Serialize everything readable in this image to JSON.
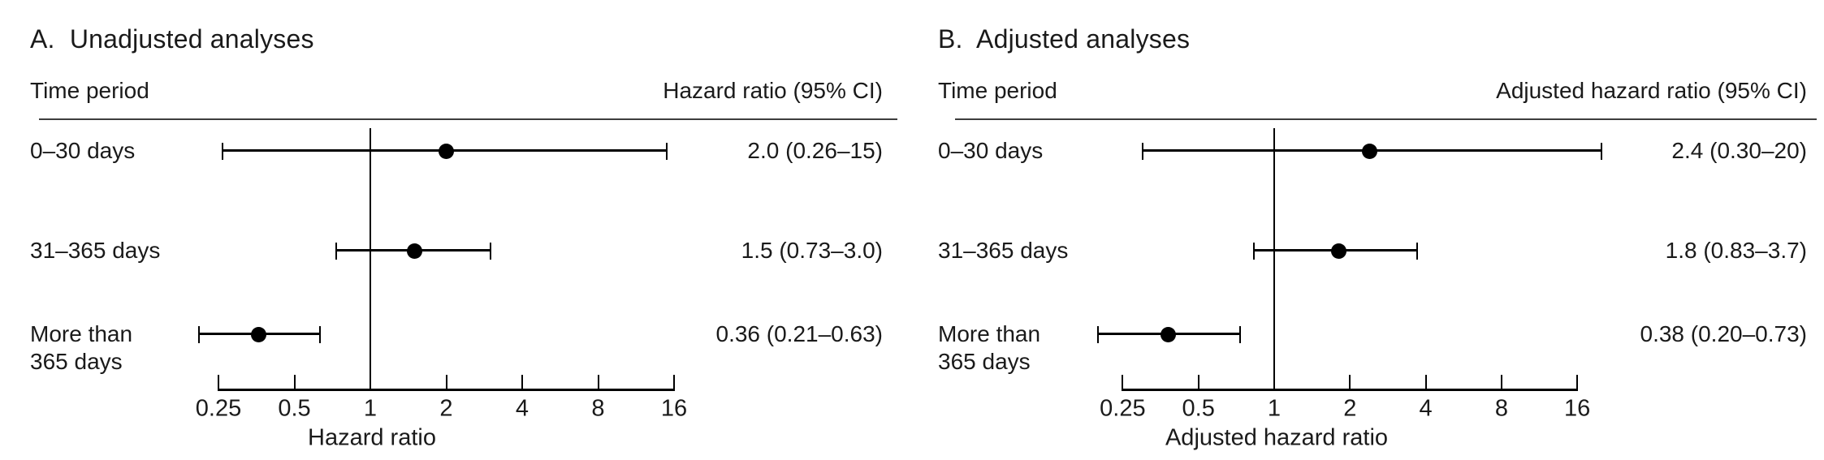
{
  "chart_data": [
    {
      "type": "forest",
      "panel": "A",
      "title": "A.  Unadjusted analyses",
      "left_header": "Time period",
      "right_header": "Hazard ratio (95% CI)",
      "xlabel": "Hazard ratio",
      "xscale": "log2",
      "xlim": [
        0.25,
        16
      ],
      "xticks": [
        0.25,
        0.5,
        1,
        2,
        4,
        8,
        16
      ],
      "xtick_labels": [
        "0.25",
        "0.5",
        "1",
        "2",
        "4",
        "8",
        "16"
      ],
      "ref_line": 1,
      "rows": [
        {
          "label_lines": [
            "0–30 days"
          ],
          "hr": 2.0,
          "ci_low": 0.26,
          "ci_high": 15,
          "display": "2.0 (0.26–15)"
        },
        {
          "label_lines": [
            "31–365 days"
          ],
          "hr": 1.5,
          "ci_low": 0.73,
          "ci_high": 3.0,
          "display": "1.5 (0.73–3.0)"
        },
        {
          "label_lines": [
            "More than",
            "365 days"
          ],
          "hr": 0.36,
          "ci_low": 0.21,
          "ci_high": 0.63,
          "display": "0.36 (0.21–0.63)"
        }
      ]
    },
    {
      "type": "forest",
      "panel": "B",
      "title": "B.  Adjusted analyses",
      "left_header": "Time period",
      "right_header": "Adjusted hazard ratio (95% CI)",
      "xlabel": "Adjusted hazard ratio",
      "xscale": "log2",
      "xlim": [
        0.25,
        16
      ],
      "xticks": [
        0.25,
        0.5,
        1,
        2,
        4,
        8,
        16
      ],
      "xtick_labels": [
        "0.25",
        "0.5",
        "1",
        "2",
        "4",
        "8",
        "16"
      ],
      "ref_line": 1,
      "rows": [
        {
          "label_lines": [
            "0–30 days"
          ],
          "hr": 2.4,
          "ci_low": 0.3,
          "ci_high": 20,
          "display": "2.4 (0.30–20)"
        },
        {
          "label_lines": [
            "31–365 days"
          ],
          "hr": 1.8,
          "ci_low": 0.83,
          "ci_high": 3.7,
          "display": "1.8 (0.83–3.7)"
        },
        {
          "label_lines": [
            "More than",
            "365 days"
          ],
          "hr": 0.38,
          "ci_low": 0.2,
          "ci_high": 0.73,
          "display": "0.38 (0.20–0.73)"
        }
      ]
    }
  ]
}
